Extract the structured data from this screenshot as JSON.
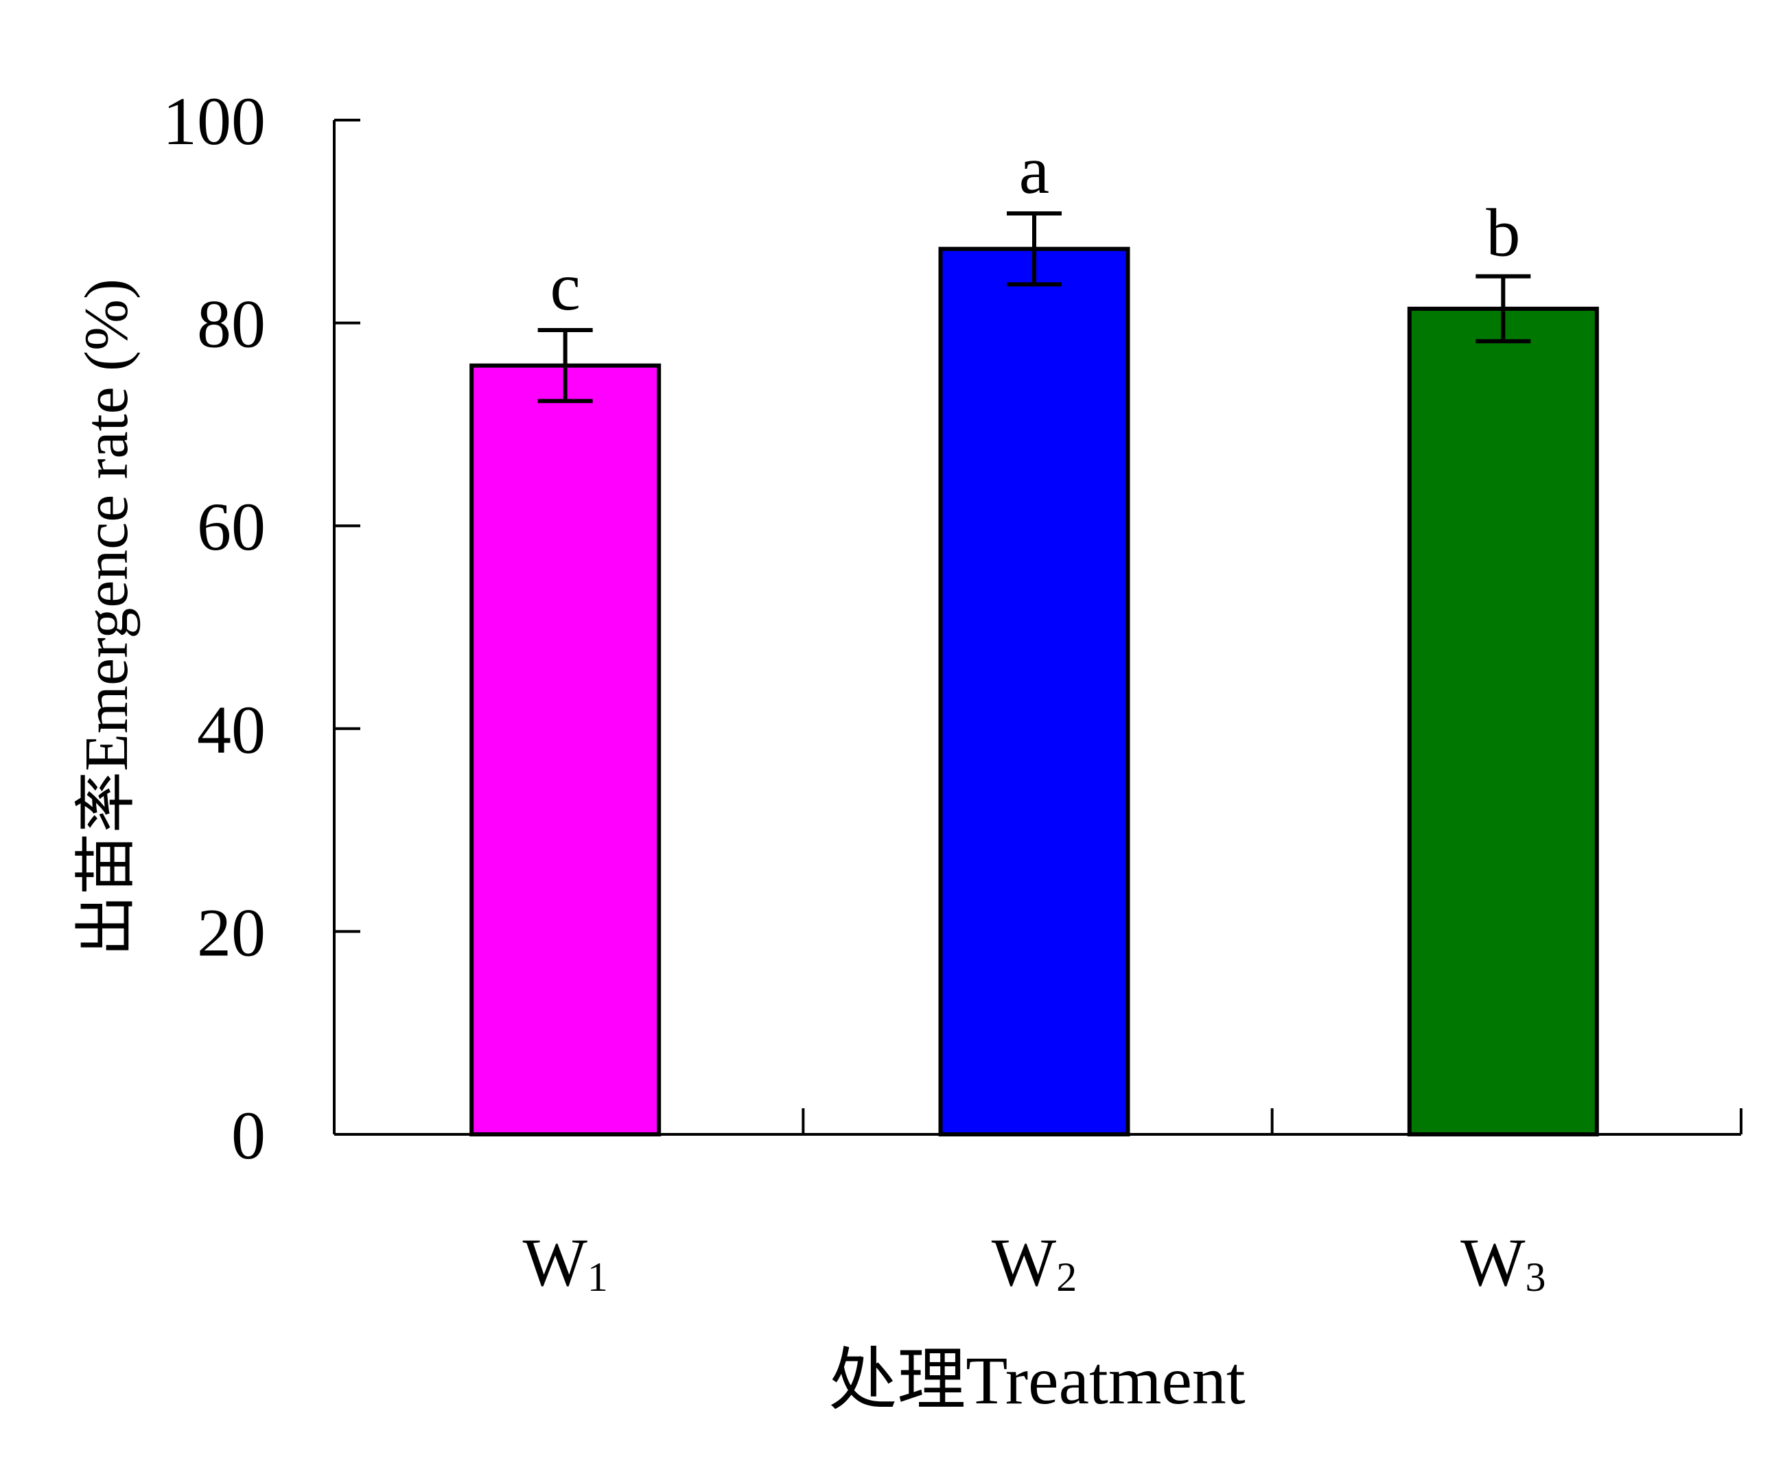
{
  "chart_data": {
    "type": "bar",
    "title": "",
    "xlabel": "处理Treatment",
    "ylabel": "出苗率Emergence rate (%)",
    "ylim": [
      0,
      100
    ],
    "yticks": [
      "0",
      "20",
      "40",
      "60",
      "80",
      "100"
    ],
    "categories": [
      {
        "base": "W",
        "sub": "1"
      },
      {
        "base": "W",
        "sub": "2"
      },
      {
        "base": "W",
        "sub": "3"
      }
    ],
    "values": [
      75.8,
      87.3,
      81.4
    ],
    "errors": [
      3.5,
      3.5,
      3.2
    ],
    "significance_letters": [
      "c",
      "a",
      "b"
    ],
    "colors": [
      "#ff00ff",
      "#0000ff",
      "#007700"
    ],
    "grid": false
  }
}
